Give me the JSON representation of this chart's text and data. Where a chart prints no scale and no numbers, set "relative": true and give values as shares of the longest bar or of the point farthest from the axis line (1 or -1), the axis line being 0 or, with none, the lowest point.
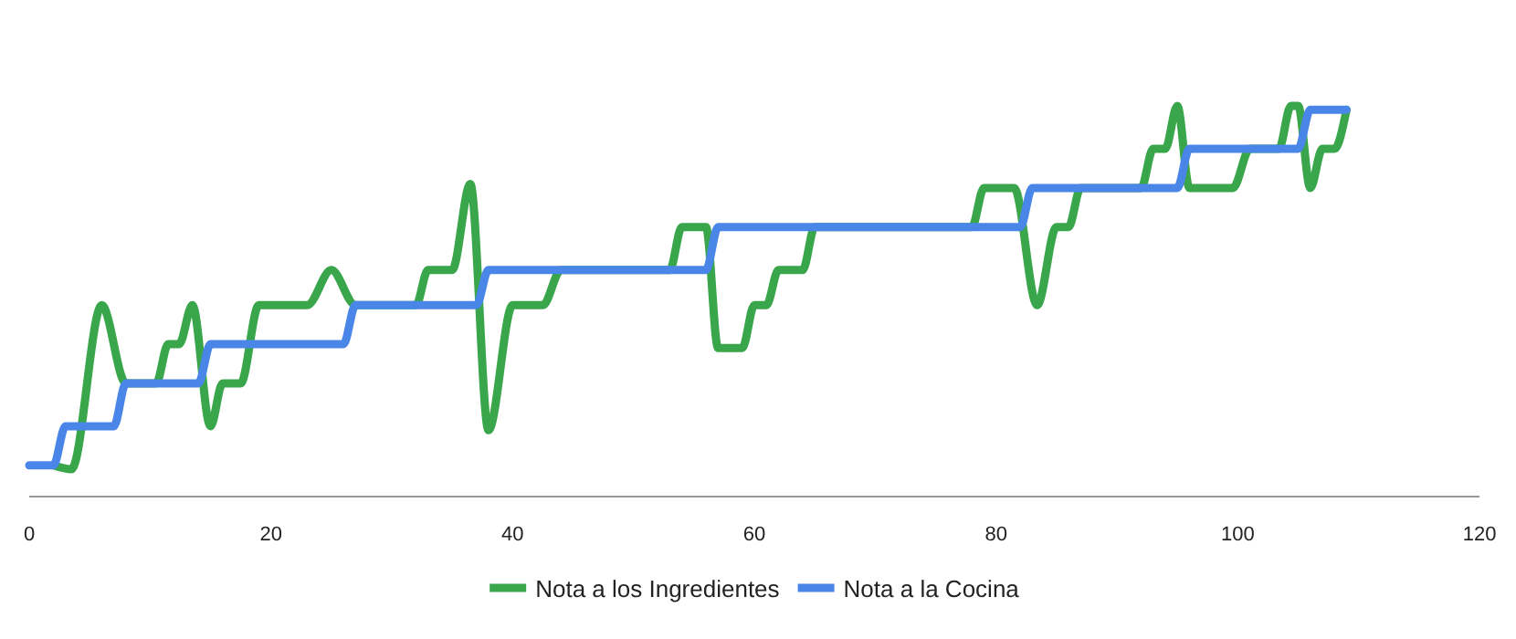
{
  "chart_data": {
    "type": "line",
    "relative": true,
    "xlim": [
      0,
      120
    ],
    "xticks": [
      0,
      20,
      40,
      60,
      80,
      100,
      120
    ],
    "legend": "bottom",
    "grid": false,
    "marker": "none",
    "line_style": "solid",
    "series": [
      {
        "name": "Nota a los Ingredientes",
        "color": "#3aa64c",
        "x": [
          2,
          3.5,
          6,
          8,
          10.5,
          11.5,
          12.4,
          13.5,
          15,
          16,
          17.5,
          19,
          23,
          25,
          27,
          32,
          33,
          35,
          36.5,
          38,
          40,
          42.5,
          44,
          53,
          54,
          56,
          57,
          59,
          60,
          61,
          62,
          64,
          65,
          78,
          79,
          81.5,
          83.4,
          85,
          86,
          87,
          92,
          93,
          94,
          95,
          96,
          99.6,
          101,
          103.4,
          104.4,
          105,
          106,
          107,
          108,
          109
        ],
        "values": [
          0.08,
          0.07,
          0.49,
          0.29,
          0.29,
          0.39,
          0.39,
          0.49,
          0.18,
          0.29,
          0.29,
          0.49,
          0.49,
          0.58,
          0.49,
          0.49,
          0.58,
          0.58,
          0.8,
          0.17,
          0.49,
          0.49,
          0.58,
          0.58,
          0.69,
          0.69,
          0.38,
          0.38,
          0.49,
          0.49,
          0.58,
          0.58,
          0.69,
          0.69,
          0.79,
          0.79,
          0.49,
          0.69,
          0.69,
          0.79,
          0.79,
          0.89,
          0.89,
          1,
          0.79,
          0.79,
          0.89,
          0.89,
          1,
          1,
          0.79,
          0.89,
          0.89,
          0.99
        ]
      },
      {
        "name": "Nota a la Cocina",
        "color": "#4a86e8",
        "x": [
          0,
          2,
          3,
          7,
          8,
          14,
          15,
          26,
          27,
          37,
          38,
          56,
          57,
          82,
          83,
          95,
          96,
          105,
          106,
          109
        ],
        "values": [
          0.08,
          0.08,
          0.18,
          0.18,
          0.29,
          0.29,
          0.39,
          0.39,
          0.49,
          0.49,
          0.58,
          0.58,
          0.69,
          0.69,
          0.79,
          0.79,
          0.89,
          0.89,
          0.99,
          0.99
        ]
      }
    ]
  }
}
